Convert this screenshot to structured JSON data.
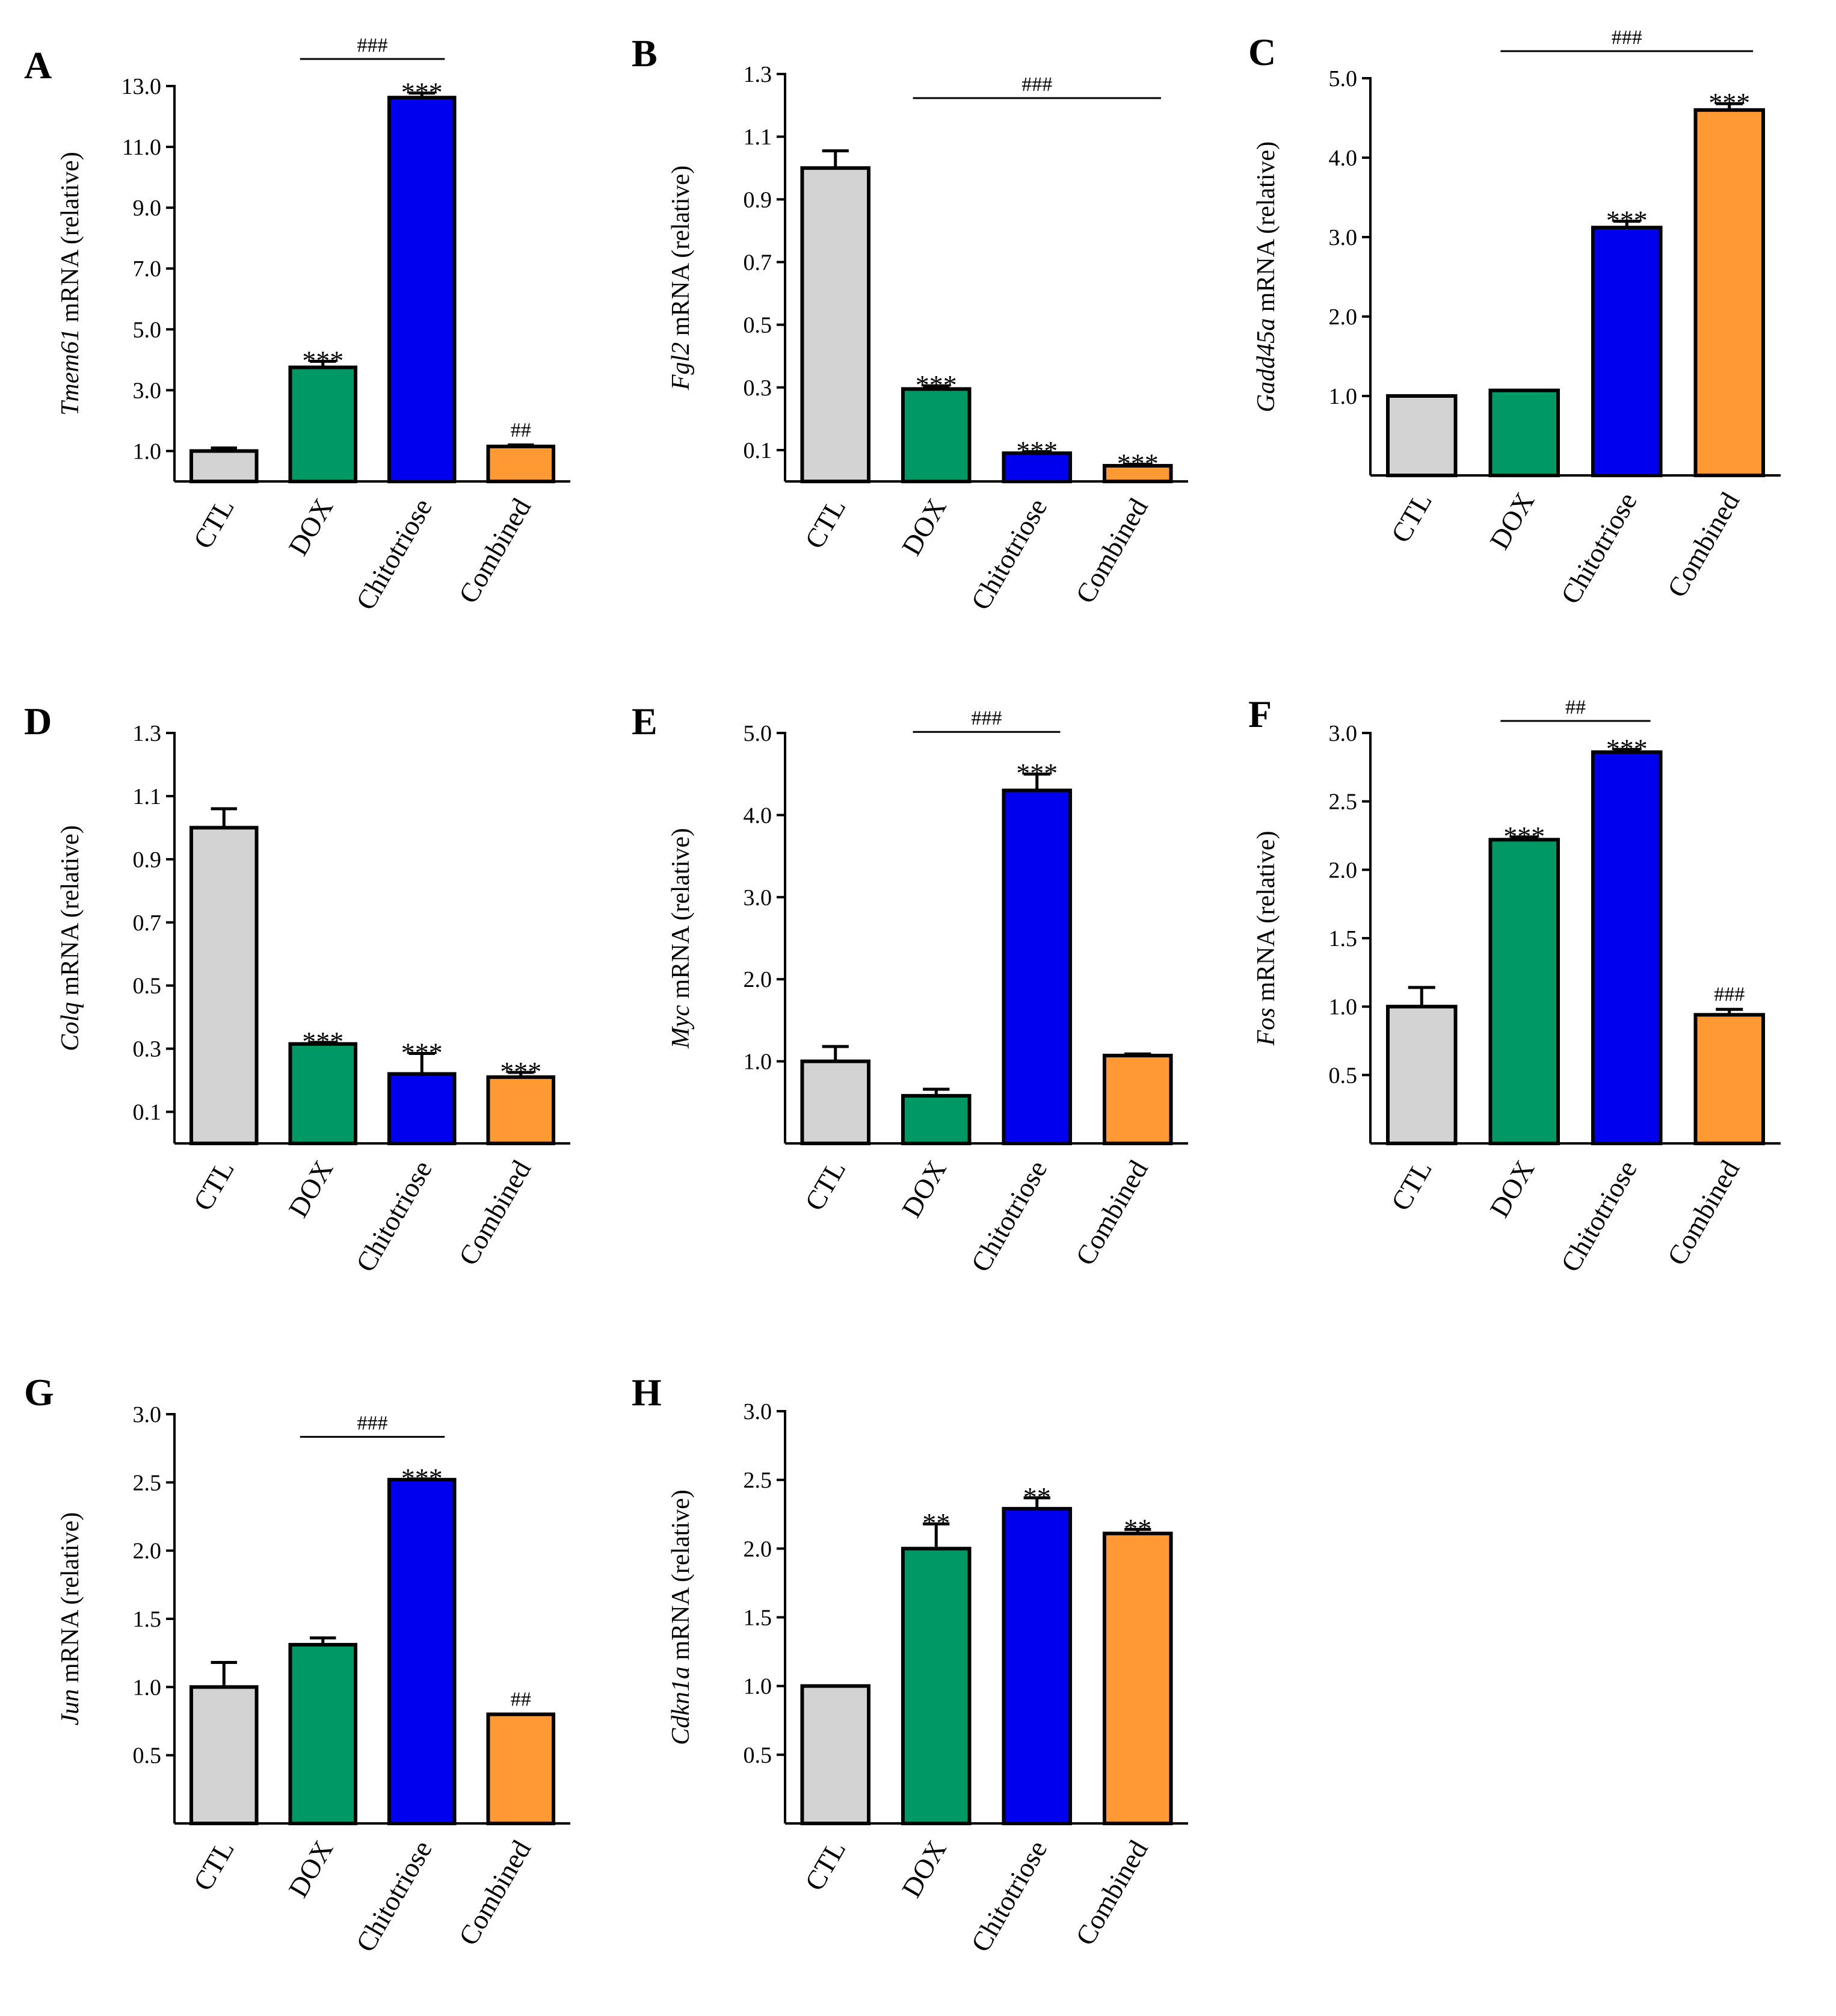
{
  "colors": {
    "CTL": "#d3d3d3",
    "DOX": "#009966",
    "Chitotriose": "#0000ee",
    "Combined": "#ff9933"
  },
  "categories": [
    "CTL",
    "DOX",
    "Chitotriose",
    "Combined"
  ],
  "chart_data": [
    {
      "type": "bar",
      "panel": "A",
      "gene": "Tmem61",
      "ylabel_suffix": " mRNA (relative)",
      "ylim": [
        0,
        13.0
      ],
      "yticks": [
        "1.0",
        "3.0",
        "5.0",
        "7.0",
        "9.0",
        "11.0",
        "13.0"
      ],
      "categories": [
        "CTL",
        "DOX",
        "Chitotriose",
        "Combined"
      ],
      "values": [
        1.0,
        3.75,
        12.62,
        1.15
      ],
      "errors": [
        0.1,
        0.2,
        0.15,
        0.05
      ],
      "sig": [
        "",
        "***",
        "***",
        "##"
      ],
      "bracket": {
        "from": 1,
        "to": 2,
        "label": "###"
      }
    },
    {
      "type": "bar",
      "panel": "B",
      "gene": "Fgl2",
      "ylabel_suffix": " mRNA (relative)",
      "ylim": [
        0,
        1.3
      ],
      "yticks": [
        "0.1",
        "0.3",
        "0.5",
        "0.7",
        "0.9",
        "1.1",
        "1.3"
      ],
      "categories": [
        "CTL",
        "DOX",
        "Chitotriose",
        "Combined"
      ],
      "values": [
        1.0,
        0.295,
        0.09,
        0.05
      ],
      "errors": [
        0.055,
        0.01,
        0.005,
        0.005
      ],
      "sig": [
        "",
        "***",
        "***",
        "***"
      ],
      "bracket": {
        "from": 1,
        "to": 3,
        "label": "###"
      }
    },
    {
      "type": "bar",
      "panel": "C",
      "gene": "Gadd45a",
      "ylabel_suffix": " mRNA (relative)",
      "ylim": [
        0,
        5.0
      ],
      "yticks": [
        "1.0",
        "2.0",
        "3.0",
        "4.0",
        "5.0"
      ],
      "categories": [
        "CTL",
        "DOX",
        "Chitotriose",
        "Combined"
      ],
      "values": [
        1.0,
        1.07,
        3.12,
        4.6
      ],
      "errors": [
        0.0,
        0.0,
        0.08,
        0.08
      ],
      "sig": [
        "",
        "",
        "***",
        "***"
      ],
      "bracket": {
        "from": 1,
        "to": 3,
        "label": "###"
      }
    },
    {
      "type": "bar",
      "panel": "D",
      "gene": "Colq",
      "ylabel_suffix": " mRNA (relative)",
      "ylim": [
        0,
        1.3
      ],
      "yticks": [
        "0.1",
        "0.3",
        "0.5",
        "0.7",
        "0.9",
        "1.1",
        "1.3"
      ],
      "categories": [
        "CTL",
        "DOX",
        "Chitotriose",
        "Combined"
      ],
      "values": [
        1.0,
        0.315,
        0.22,
        0.21
      ],
      "errors": [
        0.06,
        0.005,
        0.065,
        0.015
      ],
      "sig": [
        "",
        "***",
        "***",
        "***"
      ],
      "bracket": null
    },
    {
      "type": "bar",
      "panel": "E",
      "gene": "Myc",
      "ylabel_suffix": " mRNA (relative)",
      "ylim": [
        0,
        5.0
      ],
      "yticks": [
        "1.0",
        "2.0",
        "3.0",
        "4.0",
        "5.0"
      ],
      "categories": [
        "CTL",
        "DOX",
        "Chitotriose",
        "Combined"
      ],
      "values": [
        1.0,
        0.58,
        4.3,
        1.07
      ],
      "errors": [
        0.18,
        0.08,
        0.2,
        0.02
      ],
      "sig": [
        "",
        "",
        "***",
        ""
      ],
      "bracket": {
        "from": 1,
        "to": 2,
        "label": "###"
      }
    },
    {
      "type": "bar",
      "panel": "F",
      "gene": "Fos",
      "ylabel_suffix": " mRNA (relative)",
      "ylim": [
        0,
        3.0
      ],
      "yticks": [
        "0.5",
        "1.0",
        "1.5",
        "2.0",
        "2.5",
        "3.0"
      ],
      "categories": [
        "CTL",
        "DOX",
        "Chitotriose",
        "Combined"
      ],
      "values": [
        1.0,
        2.22,
        2.86,
        0.94
      ],
      "errors": [
        0.14,
        0.02,
        0.02,
        0.04
      ],
      "sig": [
        "",
        "***",
        "***",
        "###"
      ],
      "bracket": {
        "from": 1,
        "to": 2,
        "label": "##"
      }
    },
    {
      "type": "bar",
      "panel": "G",
      "gene": "Jun",
      "ylabel_suffix": " mRNA (relative)",
      "ylim": [
        0,
        3.0
      ],
      "yticks": [
        "0.5",
        "1.0",
        "1.5",
        "2.0",
        "2.5",
        "3.0"
      ],
      "categories": [
        "CTL",
        "DOX",
        "Chitotriose",
        "Combined"
      ],
      "values": [
        1.0,
        1.31,
        2.52,
        0.8
      ],
      "errors": [
        0.18,
        0.05,
        0.005,
        0.0
      ],
      "sig": [
        "",
        "",
        "***",
        "##"
      ],
      "bracket": {
        "from": 1,
        "to": 2,
        "label": "###"
      }
    },
    {
      "type": "bar",
      "panel": "H",
      "gene": "Cdkn1a",
      "ylabel_suffix": " mRNA (relative)",
      "ylim": [
        0,
        3.0
      ],
      "yticks": [
        "0.5",
        "1.0",
        "1.5",
        "2.0",
        "2.5",
        "3.0"
      ],
      "categories": [
        "CTL",
        "DOX",
        "Chitotriose",
        "Combined"
      ],
      "values": [
        1.0,
        2.0,
        2.29,
        2.11
      ],
      "errors": [
        0.0,
        0.18,
        0.08,
        0.03
      ],
      "sig": [
        "",
        "**",
        "**",
        "**"
      ],
      "bracket": null
    }
  ]
}
